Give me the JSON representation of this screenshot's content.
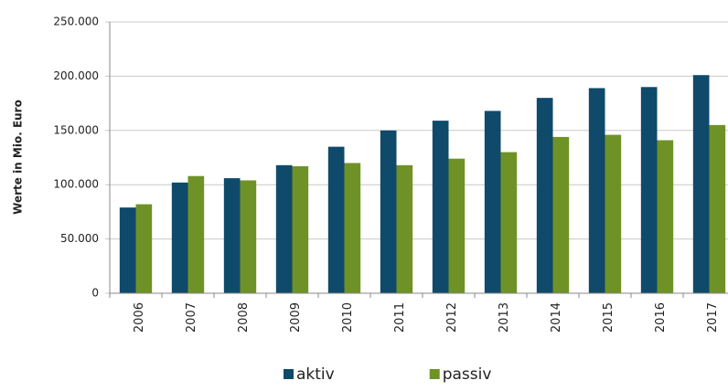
{
  "chart_data": {
    "type": "bar",
    "y_label": "Werte in Mio. Euro",
    "categories": [
      "2006",
      "2007",
      "2008",
      "2009",
      "2010",
      "2011",
      "2012",
      "2013",
      "2014",
      "2015",
      "2016",
      "2017"
    ],
    "series": [
      {
        "name": "aktiv",
        "color": "#0f4a6b",
        "values": [
          79000,
          102000,
          106000,
          118000,
          135000,
          150000,
          159000,
          168000,
          180000,
          189000,
          190000,
          201000
        ]
      },
      {
        "name": "passiv",
        "color": "#6f9226",
        "values": [
          82000,
          108000,
          104000,
          117000,
          120000,
          118000,
          124000,
          130000,
          144000,
          146000,
          141000,
          155000
        ]
      }
    ],
    "ylim": [
      0,
      250000
    ],
    "yticks": [
      0,
      {
        "value": 50000,
        "label": "50.000"
      },
      {
        "value": 100000,
        "label": "100.000"
      },
      {
        "value": 150000,
        "label": "150.000"
      },
      {
        "value": 200000,
        "label": "200.000"
      },
      {
        "value": 250000,
        "label": "250.000"
      }
    ],
    "grid": true,
    "legend": "bottom"
  }
}
